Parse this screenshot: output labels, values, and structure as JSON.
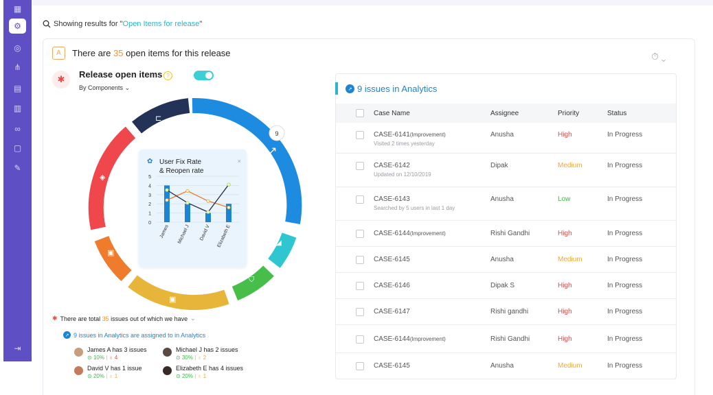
{
  "search": {
    "prefix": "Showing results for \"",
    "query": "Open Items for release",
    "suffix": "\""
  },
  "header": {
    "text_before": "There are ",
    "count": "35",
    "text_after": " open items for this release"
  },
  "release": {
    "title": "Release open items",
    "group_by": "By Components",
    "toggle_on": true,
    "donut_badge": "9",
    "popover": {
      "title_line1": "User Fix Rate",
      "title_line2": "& Reopen rate",
      "close": "×",
      "chart_data": {
        "type": "bar",
        "categories": [
          "James",
          "Michael J",
          "David V",
          "Elizabeth E"
        ],
        "ylim": [
          0,
          5
        ],
        "yticks": [
          "0",
          "1",
          "2",
          "3",
          "4",
          "5"
        ],
        "bars": [
          4,
          2,
          1,
          2
        ],
        "series": [
          {
            "color": "#e8762b",
            "values": [
              2.4,
              3.4,
              2.3,
              1.6
            ]
          },
          {
            "color": "#2b2b4a",
            "values": [
              3.5,
              2.1,
              1.1,
              4.1
            ]
          }
        ]
      }
    }
  },
  "summary": {
    "text_before": "There are total ",
    "count": "35",
    "text_after": " issues out of which we have",
    "assigned": "9 issues in Analytics are assigned to in Analytics"
  },
  "users": [
    {
      "name": "James A has 3 issues",
      "good": "10%",
      "bad": "4",
      "bad_type": "bad"
    },
    {
      "name": "Michael J has 2 issues",
      "good": "30%",
      "bad": "2",
      "bad_type": "warn"
    },
    {
      "name": "David V  has 1 issue",
      "good": "20%",
      "bad": "1",
      "bad_type": "warn"
    },
    {
      "name": "Elizabeth E has 4 issues",
      "good": "20%",
      "bad": "1",
      "bad_type": "warn"
    }
  ],
  "issues": {
    "title": "9 issues in Analytics",
    "columns": [
      "Case Name",
      "Assignee",
      "Priority",
      "Status"
    ],
    "rows": [
      {
        "case": "CASE-6141",
        "tag": "(Improvement)",
        "sub": "Visited 2 times yesterday",
        "assignee": "Anusha",
        "priority": "High",
        "status": "In Progress"
      },
      {
        "case": "CASE-6142",
        "tag": "",
        "sub": "Updated on 12/10/2019",
        "assignee": "Dipak",
        "priority": "Medium",
        "status": "In Progress"
      },
      {
        "case": "CASE-6143",
        "tag": "",
        "sub": "Searched by 5 users in last 1 day",
        "assignee": "Anusha",
        "priority": "Low",
        "status": "In Progress"
      },
      {
        "case": "CASE-6144",
        "tag": "(Improvement)",
        "sub": "",
        "assignee": "Rishi Gandhi",
        "priority": "High",
        "status": "In Progress"
      },
      {
        "case": "CASE-6145",
        "tag": "",
        "sub": "",
        "assignee": "Anusha",
        "priority": "Medium",
        "status": "In Progress"
      },
      {
        "case": "CASE-6146",
        "tag": "",
        "sub": "",
        "assignee": "Dipak S",
        "priority": "High",
        "status": "In Progress"
      },
      {
        "case": "CASE-6147",
        "tag": "",
        "sub": "",
        "assignee": "Rishi gandhi",
        "priority": "High",
        "status": "In Progress"
      },
      {
        "case": "CASE-6144",
        "tag": "(Improvement)",
        "sub": "",
        "assignee": "Rishi Gandhi",
        "priority": "High",
        "status": "In Progress"
      },
      {
        "case": "CASE-6145",
        "tag": "",
        "sub": "",
        "assignee": "Anusha",
        "priority": "Medium",
        "status": "In Progress"
      }
    ]
  }
}
